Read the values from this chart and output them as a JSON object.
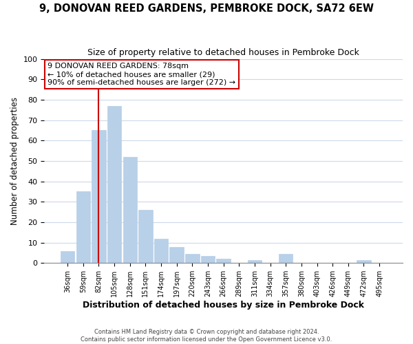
{
  "title": "9, DONOVAN REED GARDENS, PEMBROKE DOCK, SA72 6EW",
  "subtitle": "Size of property relative to detached houses in Pembroke Dock",
  "xlabel": "Distribution of detached houses by size in Pembroke Dock",
  "ylabel": "Number of detached properties",
  "bar_labels": [
    "36sqm",
    "59sqm",
    "82sqm",
    "105sqm",
    "128sqm",
    "151sqm",
    "174sqm",
    "197sqm",
    "220sqm",
    "243sqm",
    "266sqm",
    "289sqm",
    "311sqm",
    "334sqm",
    "357sqm",
    "380sqm",
    "403sqm",
    "426sqm",
    "449sqm",
    "472sqm",
    "495sqm"
  ],
  "bar_values": [
    6,
    35,
    65,
    77,
    52,
    26,
    12,
    8,
    4.5,
    3.5,
    2,
    0,
    1.5,
    0,
    4.5,
    0,
    0,
    0,
    0,
    1.5,
    0
  ],
  "bar_color": "#b8d0e8",
  "bar_edge_color": "#b8d0e8",
  "vline_x": 2,
  "vline_color": "#cc0000",
  "ylim": [
    0,
    100
  ],
  "yticks": [
    0,
    10,
    20,
    30,
    40,
    50,
    60,
    70,
    80,
    90,
    100
  ],
  "annotation_title": "9 DONOVAN REED GARDENS: 78sqm",
  "annotation_line1": "← 10% of detached houses are smaller (29)",
  "annotation_line2": "90% of semi-detached houses are larger (272) →",
  "annotation_box_color": "#ffffff",
  "annotation_box_edge": "#cc0000",
  "footer1": "Contains HM Land Registry data © Crown copyright and database right 2024.",
  "footer2": "Contains public sector information licensed under the Open Government Licence v3.0.",
  "background_color": "#ffffff",
  "grid_color": "#ccd9e8"
}
